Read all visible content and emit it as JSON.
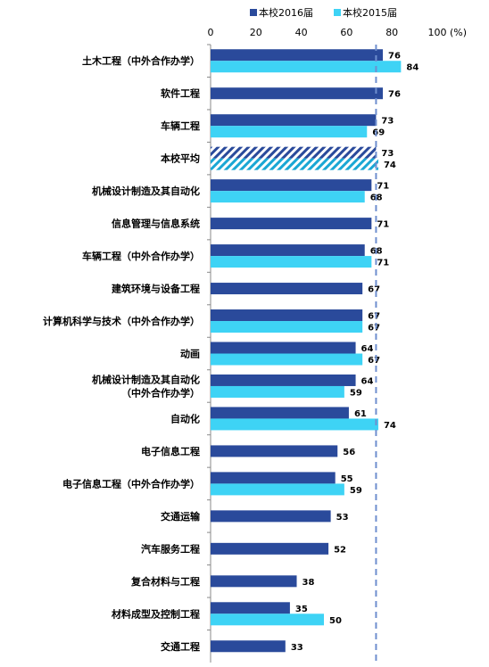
{
  "chart_data": {
    "type": "bar",
    "orientation": "horizontal",
    "unit": "(%)",
    "xlim": [
      0,
      100
    ],
    "ticks": [
      0,
      20,
      40,
      60,
      80,
      100
    ],
    "legend_position": "top",
    "colors": {
      "2016": "#2a4a9b",
      "2015": "#3ed3f5",
      "ref_line": "#6f8fcf"
    },
    "reference_line": {
      "value": 73
    },
    "series": [
      {
        "name": "本校2016届",
        "key": "2016"
      },
      {
        "name": "本校2015届",
        "key": "2015"
      }
    ],
    "categories": [
      {
        "label": [
          "土木工程（中外合作办学）"
        ],
        "v2016": 76,
        "v2015": 84
      },
      {
        "label": [
          "软件工程"
        ],
        "v2016": 76,
        "v2015": null
      },
      {
        "label": [
          "车辆工程"
        ],
        "v2016": 73,
        "v2015": 69
      },
      {
        "label": [
          "本校平均"
        ],
        "v2016": 73,
        "v2015": 74,
        "hatched": true
      },
      {
        "label": [
          "机械设计制造及其自动化"
        ],
        "v2016": 71,
        "v2015": 68
      },
      {
        "label": [
          "信息管理与信息系统"
        ],
        "v2016": 71,
        "v2015": null
      },
      {
        "label": [
          "车辆工程（中外合作办学）"
        ],
        "v2016": 68,
        "v2015": 71
      },
      {
        "label": [
          "建筑环境与设备工程"
        ],
        "v2016": 67,
        "v2015": null
      },
      {
        "label": [
          "计算机科学与技术（中外合作办学）"
        ],
        "v2016": 67,
        "v2015": 67
      },
      {
        "label": [
          "动画"
        ],
        "v2016": 64,
        "v2015": 67
      },
      {
        "label": [
          "机械设计制造及其自动化",
          "（中外合作办学）"
        ],
        "v2016": 64,
        "v2015": 59
      },
      {
        "label": [
          "自动化"
        ],
        "v2016": 61,
        "v2015": 74
      },
      {
        "label": [
          "电子信息工程"
        ],
        "v2016": 56,
        "v2015": null
      },
      {
        "label": [
          "电子信息工程（中外合作办学）"
        ],
        "v2016": 55,
        "v2015": 59
      },
      {
        "label": [
          "交通运输"
        ],
        "v2016": 53,
        "v2015": null
      },
      {
        "label": [
          "汽车服务工程"
        ],
        "v2016": 52,
        "v2015": null
      },
      {
        "label": [
          "复合材料与工程"
        ],
        "v2016": 38,
        "v2015": null
      },
      {
        "label": [
          "材料成型及控制工程"
        ],
        "v2016": 35,
        "v2015": 50
      },
      {
        "label": [
          "交通工程"
        ],
        "v2016": 33,
        "v2015": null
      }
    ]
  }
}
